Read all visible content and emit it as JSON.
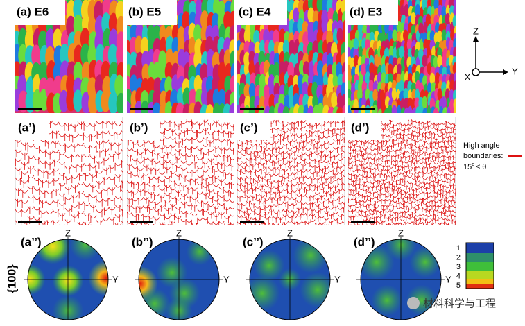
{
  "maps": [
    {
      "label": "(a) E6"
    },
    {
      "label": "(b) E5"
    },
    {
      "label": "(c) E4"
    },
    {
      "label": "(d) E3"
    }
  ],
  "boundary_maps": [
    {
      "label": "(a’)"
    },
    {
      "label": "(b’)"
    },
    {
      "label": "(c’)"
    },
    {
      "label": "(d’)"
    }
  ],
  "pole_figures": [
    {
      "label": "(a’’)",
      "z": "Z",
      "y": "Y"
    },
    {
      "label": "(b’’)",
      "z": "Z",
      "y": "Y"
    },
    {
      "label": "(c’’)",
      "z": "Z",
      "y": "Y"
    },
    {
      "label": "(d’’)",
      "z": "Z",
      "y": "Y"
    }
  ],
  "axes": {
    "z": "Z",
    "x": "X",
    "y": "Y"
  },
  "legend": {
    "line1": "High angle",
    "line2": "boundaries:",
    "angle": "15",
    "degree": "o",
    "condition": "≤ θ"
  },
  "pole_label": "{100}",
  "colorbar_ticks": [
    "1",
    "2",
    "3",
    "4",
    "5"
  ],
  "watermark": "材料科学与工程"
}
